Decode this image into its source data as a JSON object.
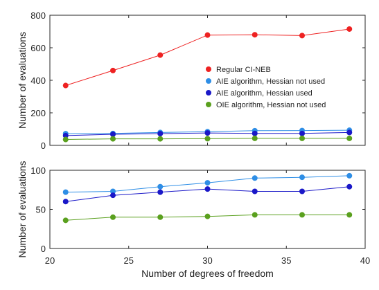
{
  "chart_data": [
    {
      "type": "line",
      "xlabel": "",
      "ylabel": "Number of evaluations",
      "xlim": [
        20,
        40
      ],
      "ylim": [
        0,
        800
      ],
      "xticks": [
        20,
        25,
        30,
        35,
        40
      ],
      "yticks": [
        0,
        200,
        400,
        600,
        800
      ],
      "grid": false,
      "legend_position": "center-right",
      "x": [
        21,
        24,
        27,
        30,
        33,
        36,
        39
      ],
      "series": [
        {
          "name": "Regular CI-NEB",
          "color": "#ee2222",
          "values": [
            368,
            460,
            555,
            678,
            680,
            675,
            715
          ]
        },
        {
          "name": "AIE algorithm, Hessian not used",
          "color": "#2e8ee6",
          "values": [
            72,
            73,
            79,
            84,
            90,
            91,
            93
          ]
        },
        {
          "name": "AIE algorithm, Hessian used",
          "color": "#1a18c8",
          "values": [
            60,
            68,
            72,
            76,
            73,
            73,
            79
          ]
        },
        {
          "name": "OIE algorithm, Hessian not used",
          "color": "#5aa01e",
          "values": [
            36,
            40,
            40,
            41,
            43,
            43,
            43
          ]
        }
      ]
    },
    {
      "type": "line",
      "xlabel": "Number of degrees of freedom",
      "ylabel": "Number of evaluations",
      "xlim": [
        20,
        40
      ],
      "ylim": [
        0,
        100
      ],
      "xticks": [
        20,
        25,
        30,
        35,
        40
      ],
      "yticks": [
        0,
        50,
        100
      ],
      "grid": false,
      "x": [
        21,
        24,
        27,
        30,
        33,
        36,
        39
      ],
      "series": [
        {
          "color": "#2e8ee6",
          "values": [
            72,
            73,
            79,
            84,
            90,
            91,
            93
          ]
        },
        {
          "color": "#1a18c8",
          "values": [
            60,
            68,
            72,
            76,
            73,
            73,
            79
          ]
        },
        {
          "color": "#5aa01e",
          "values": [
            36,
            40,
            40,
            41,
            43,
            43,
            43
          ]
        }
      ]
    }
  ]
}
